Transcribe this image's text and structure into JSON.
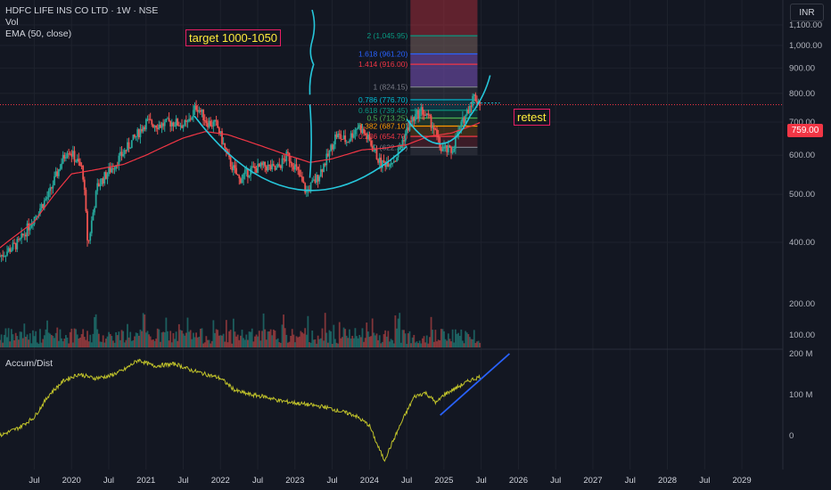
{
  "header": {
    "symbol_line": "HDFC LIFE INS CO LTD · 1W · NSE",
    "vol_label": "Vol",
    "ema_label": "EMA (50, close)"
  },
  "currency": "INR",
  "indicator_label": "Accum/Dist",
  "annotations": {
    "target": "target 1000-1050",
    "retest": "retest"
  },
  "last_price": "759.00",
  "colors": {
    "background": "#131722",
    "up": "#26a69a",
    "down": "#ef5350",
    "ema": "#f23645",
    "cup": "#26c6da",
    "accum_dist": "#c0c22a",
    "trendline": "#2962ff",
    "annotation_text": "#ffeb3b",
    "annotation_border": "#e91e63"
  },
  "chart_data": [
    {
      "type": "candlestick",
      "title": "HDFC LIFE INS CO LTD · 1W · NSE",
      "price_axis": {
        "ticks": [
          "1,100.00",
          "1,000.00",
          "900.00",
          "800.00",
          "700.00",
          "600.00",
          "500.00",
          "400.00"
        ],
        "tick_values": [
          1100,
          1000,
          900,
          800,
          700,
          600,
          500,
          400
        ],
        "ylim": [
          330,
          1150
        ],
        "scale": "log"
      },
      "volume_axis": {
        "ticks": [
          "200.00",
          "100.00"
        ]
      },
      "x_axis": {
        "tick_labels": [
          "Jul",
          "2020",
          "Jul",
          "2021",
          "Jul",
          "2022",
          "Jul",
          "2023",
          "Jul",
          "2024",
          "Jul",
          "2025",
          "Jul",
          "2026",
          "Jul",
          "2027",
          "Jul",
          "2028",
          "Jul",
          "2029"
        ],
        "tick_dates": [
          2019.5,
          2020.0,
          2020.5,
          2021.0,
          2021.5,
          2022.0,
          2022.5,
          2023.0,
          2023.5,
          2024.0,
          2024.5,
          2025.0,
          2025.5,
          2026.0,
          2026.5,
          2027.0,
          2027.5,
          2028.0,
          2028.5,
          2029.0
        ],
        "xlim": [
          2019.04,
          2029.55
        ]
      },
      "price_keypoints": [
        [
          2019.04,
          375
        ],
        [
          2019.3,
          400
        ],
        [
          2019.7,
          500
        ],
        [
          2019.95,
          620
        ],
        [
          2020.15,
          560
        ],
        [
          2020.22,
          390
        ],
        [
          2020.35,
          520
        ],
        [
          2020.6,
          580
        ],
        [
          2020.85,
          650
        ],
        [
          2021.0,
          700
        ],
        [
          2021.2,
          690
        ],
        [
          2021.35,
          700
        ],
        [
          2021.55,
          690
        ],
        [
          2021.68,
          755
        ],
        [
          2021.82,
          700
        ],
        [
          2021.95,
          690
        ],
        [
          2022.1,
          590
        ],
        [
          2022.25,
          535
        ],
        [
          2022.4,
          560
        ],
        [
          2022.6,
          570
        ],
        [
          2022.75,
          560
        ],
        [
          2022.9,
          600
        ],
        [
          2023.0,
          570
        ],
        [
          2023.15,
          505
        ],
        [
          2023.3,
          540
        ],
        [
          2023.45,
          600
        ],
        [
          2023.55,
          660
        ],
        [
          2023.7,
          640
        ],
        [
          2023.85,
          690
        ],
        [
          2024.0,
          640
        ],
        [
          2024.15,
          575
        ],
        [
          2024.35,
          590
        ],
        [
          2024.55,
          700
        ],
        [
          2024.7,
          740
        ],
        [
          2024.85,
          690
        ],
        [
          2024.95,
          620
        ],
        [
          2025.1,
          610
        ],
        [
          2025.25,
          700
        ],
        [
          2025.4,
          790
        ],
        [
          2025.5,
          760
        ]
      ],
      "ema_keypoints": [
        [
          2019.04,
          390
        ],
        [
          2019.5,
          440
        ],
        [
          2020.0,
          550
        ],
        [
          2020.3,
          560
        ],
        [
          2020.7,
          575
        ],
        [
          2021.0,
          600
        ],
        [
          2021.5,
          650
        ],
        [
          2021.8,
          670
        ],
        [
          2022.1,
          660
        ],
        [
          2022.5,
          630
        ],
        [
          2022.9,
          600
        ],
        [
          2023.2,
          580
        ],
        [
          2023.5,
          590
        ],
        [
          2023.9,
          615
        ],
        [
          2024.2,
          620
        ],
        [
          2024.5,
          630
        ],
        [
          2024.8,
          655
        ],
        [
          2025.1,
          665
        ],
        [
          2025.4,
          690
        ],
        [
          2025.5,
          700
        ]
      ],
      "fibonacci": [
        {
          "ratio": "0",
          "value": 622.35,
          "label": "0 (622.35)",
          "color": "#787b86"
        },
        {
          "ratio": "0.236",
          "value": 654.7,
          "label": "0.236 (654.70)",
          "color": "#f23645"
        },
        {
          "ratio": "0.382",
          "value": 687.1,
          "label": "0.382 (687.10)",
          "color": "#ff9800"
        },
        {
          "ratio": "0.5",
          "value": 713.25,
          "label": "0.5 (713.25)",
          "color": "#4caf50"
        },
        {
          "ratio": "0.618",
          "value": 739.45,
          "label": "0.618 (739.45)",
          "color": "#089981"
        },
        {
          "ratio": "0.786",
          "value": 776.7,
          "label": "0.786 (776.70)",
          "color": "#00bcd4"
        },
        {
          "ratio": "1",
          "value": 824.15,
          "label": "1 (824.15)",
          "color": "#787b86"
        },
        {
          "ratio": "1.414",
          "value": 916.0,
          "label": "1.414 (916.00)",
          "color": "#f23645"
        },
        {
          "ratio": "1.618",
          "value": 961.2,
          "label": "1.618 (961.20)",
          "color": "#2962ff"
        },
        {
          "ratio": "2",
          "value": 1045.95,
          "label": "2 (1,045.95)",
          "color": "#089981"
        }
      ],
      "last_price": 759.0
    },
    {
      "type": "line",
      "title": "Accum/Dist",
      "y_axis": {
        "ticks": [
          "200 M",
          "100 M",
          "0"
        ],
        "tick_values": [
          200,
          100,
          0
        ],
        "ylim": [
          -70,
          210
        ]
      },
      "keypoints": [
        [
          2019.04,
          0
        ],
        [
          2019.3,
          20
        ],
        [
          2019.5,
          45
        ],
        [
          2019.7,
          100
        ],
        [
          2019.9,
          135
        ],
        [
          2020.1,
          150
        ],
        [
          2020.3,
          140
        ],
        [
          2020.5,
          145
        ],
        [
          2020.7,
          160
        ],
        [
          2020.9,
          185
        ],
        [
          2021.1,
          170
        ],
        [
          2021.4,
          175
        ],
        [
          2021.6,
          160
        ],
        [
          2021.8,
          150
        ],
        [
          2022.0,
          140
        ],
        [
          2022.2,
          110
        ],
        [
          2022.4,
          100
        ],
        [
          2022.6,
          95
        ],
        [
          2022.8,
          85
        ],
        [
          2023.0,
          80
        ],
        [
          2023.2,
          75
        ],
        [
          2023.4,
          70
        ],
        [
          2023.6,
          60
        ],
        [
          2023.8,
          50
        ],
        [
          2024.0,
          25
        ],
        [
          2024.1,
          -20
        ],
        [
          2024.2,
          -60
        ],
        [
          2024.3,
          -20
        ],
        [
          2024.45,
          40
        ],
        [
          2024.6,
          95
        ],
        [
          2024.75,
          105
        ],
        [
          2024.9,
          80
        ],
        [
          2025.0,
          100
        ],
        [
          2025.2,
          120
        ],
        [
          2025.35,
          135
        ],
        [
          2025.5,
          145
        ]
      ],
      "trendline": [
        [
          2024.95,
          50
        ],
        [
          2025.88,
          200
        ]
      ]
    }
  ]
}
